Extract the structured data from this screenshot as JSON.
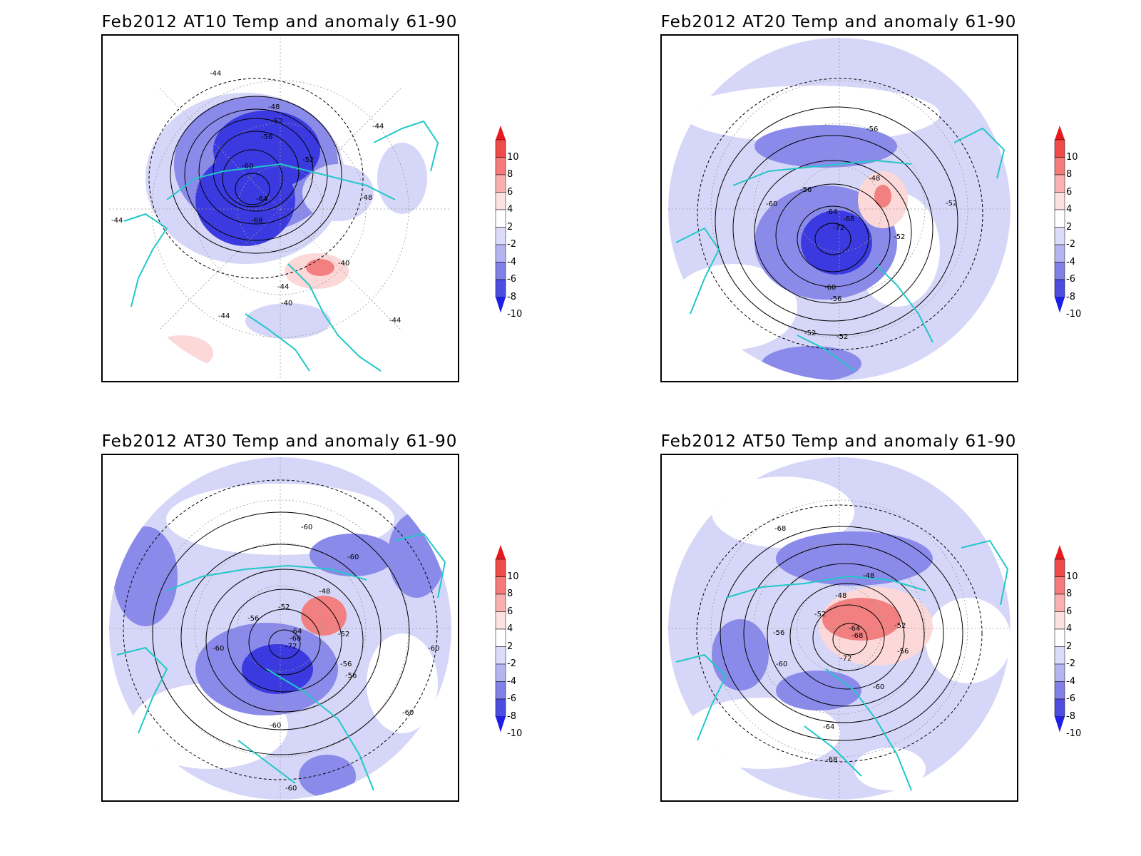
{
  "panels": [
    {
      "id": "at10",
      "title": "Feb2012 AT10 Temp and anomaly 61-90",
      "contour_labels": [
        "-44",
        "-48",
        "-52",
        "-56",
        "-60",
        "-64",
        "-68",
        "-40",
        "-44",
        "-52",
        "-48",
        "-44",
        "-44",
        "-40",
        "-44",
        "-44"
      ],
      "colorbar_ticks": [
        "10",
        "8",
        "6",
        "4",
        "2",
        "-2",
        "-4",
        "-6",
        "-8",
        "-10"
      ]
    },
    {
      "id": "at20",
      "title": "Feb2012 AT20 Temp and anomaly 61-90",
      "contour_labels": [
        "-56",
        "-60",
        "-56",
        "-64",
        "-68",
        "-72",
        "-48",
        "-52",
        "-52",
        "-60",
        "-56",
        "-52",
        "-52"
      ],
      "colorbar_ticks": [
        "10",
        "8",
        "6",
        "4",
        "2",
        "-2",
        "-4",
        "-6",
        "-8",
        "-10"
      ]
    },
    {
      "id": "at30",
      "title": "Feb2012 AT30 Temp and anomaly 61-90",
      "contour_labels": [
        "-60",
        "-60",
        "-48",
        "-52",
        "-56",
        "-64",
        "-68",
        "-72",
        "-52",
        "-56",
        "-60",
        "-56",
        "-60",
        "-60",
        "-60",
        "-60"
      ],
      "colorbar_ticks": [
        "10",
        "8",
        "6",
        "4",
        "2",
        "-2",
        "-4",
        "-6",
        "-8",
        "-10"
      ]
    },
    {
      "id": "at50",
      "title": "Feb2012 AT50 Temp and anomaly 61-90",
      "contour_labels": [
        "-68",
        "-48",
        "-48",
        "-52",
        "-56",
        "-64",
        "-68",
        "-72",
        "-52",
        "-56",
        "-60",
        "-60",
        "-64",
        "-68"
      ],
      "colorbar_ticks": [
        "10",
        "8",
        "6",
        "4",
        "2",
        "-2",
        "-4",
        "-6",
        "-8",
        "-10"
      ]
    }
  ],
  "colorbar": {
    "colors": [
      "#e8181e",
      "#f04a4a",
      "#f57a7a",
      "#f9b0b0",
      "#fde0e0",
      "#ffffff",
      "#dcdcfa",
      "#b4b4f0",
      "#8080e6",
      "#4c4ce0",
      "#1e1ee6"
    ]
  },
  "map_colors": {
    "land_outline": "#22c8c8",
    "strong_negative": "#3a3ae0",
    "moderate_negative": "#8a8aea",
    "weak_negative": "#d6d6f8",
    "weak_positive": "#fcd8d8",
    "moderate_positive": "#f28080",
    "contour": "#000000",
    "graticule": "#9a9a9a"
  }
}
